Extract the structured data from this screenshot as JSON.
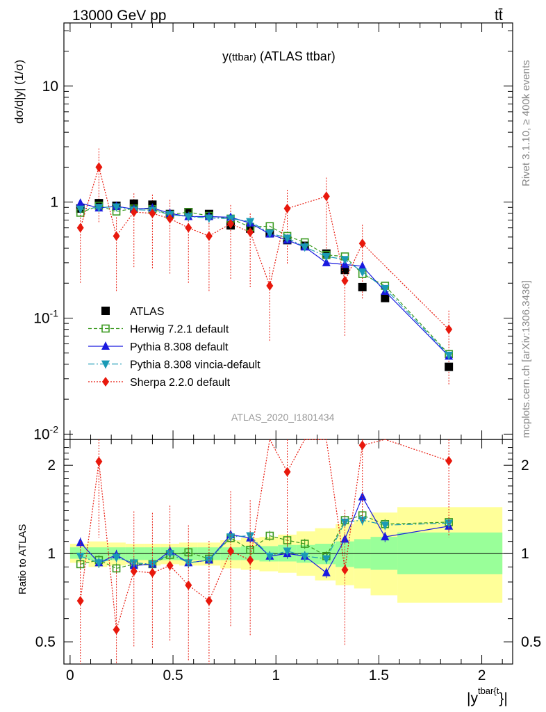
{
  "header": {
    "energy_label": "13000 GeV pp",
    "process_label": "tt̄",
    "plot_title_main": "y",
    "plot_title_sub": "(ttbar)",
    "plot_title_rest": " (ATLAS ttbar)",
    "analysis_id": "ATLAS_2020_I1801434"
  },
  "side_labels": {
    "rivet": "Rivet 3.1.10, ≥ 400k events",
    "mcplots": "mcplots.cern.ch [arXiv:1306.3436]"
  },
  "axes": {
    "ylabel_top": "dσ/d|y| (1/σ)",
    "ylabel_bottom": "Ratio to ATLAS",
    "xlabel": "|y^{tbar{t}}|",
    "xlabel_base": "|y",
    "xlabel_sup": "tbar{t",
    "xlabel_end": "}|"
  },
  "chart_data": [
    {
      "type": "line",
      "title": "y(ttbar) (ATLAS ttbar)",
      "xlabel": "|y^{tbar{t}}|",
      "ylabel": "1/σ dσ/d|y^{tbar{t}}|",
      "yscale": "log",
      "xlim": [
        -0.03,
        2.15
      ],
      "ylim": [
        0.009,
        35
      ],
      "x_ticks": [
        "0",
        "0.5",
        "1",
        "1.5",
        "2"
      ],
      "y_ticks": [
        "10^{-2}",
        "10^{-1}",
        "1",
        "10"
      ],
      "legend_position": "middle-left",
      "x": [
        0.05,
        0.14,
        0.225,
        0.31,
        0.4,
        0.485,
        0.575,
        0.675,
        0.78,
        0.875,
        0.97,
        1.055,
        1.14,
        1.245,
        1.335,
        1.42,
        1.53,
        1.84
      ],
      "series": [
        {
          "name": "ATLAS",
          "color": "#000000",
          "marker": "square",
          "values": [
            0.88,
            0.98,
            0.93,
            0.97,
            0.95,
            0.79,
            0.82,
            0.79,
            0.63,
            0.59,
            0.54,
            0.47,
            0.42,
            0.36,
            0.26,
            0.185,
            0.149,
            0.038
          ]
        },
        {
          "name": "Herwig 7.2.1 default",
          "color": "#3a9a1f",
          "marker": "open-square",
          "values": [
            0.81,
            0.93,
            0.83,
            0.88,
            0.87,
            0.78,
            0.82,
            0.76,
            0.72,
            0.61,
            0.62,
            0.51,
            0.45,
            0.35,
            0.34,
            0.24,
            0.19,
            0.049
          ]
        },
        {
          "name": "Pythia 8.308 default",
          "color": "#1a1adf",
          "marker": "triangle-up",
          "values": [
            0.98,
            0.89,
            0.92,
            0.87,
            0.89,
            0.8,
            0.75,
            0.75,
            0.74,
            0.66,
            0.53,
            0.47,
            0.41,
            0.3,
            0.29,
            0.28,
            0.17,
            0.047
          ]
        },
        {
          "name": "Pythia 8.308 vincia-default",
          "color": "#1a9ab5",
          "marker": "triangle-down",
          "values": [
            0.87,
            0.9,
            0.91,
            0.86,
            0.85,
            0.78,
            0.75,
            0.73,
            0.72,
            0.68,
            0.54,
            0.49,
            0.41,
            0.34,
            0.32,
            0.25,
            0.18,
            0.048
          ]
        },
        {
          "name": "Sherpa 2.2.0 default",
          "color": "#e8180c",
          "marker": "diamond",
          "values": [
            0.6,
            2.0,
            0.51,
            0.82,
            0.8,
            0.72,
            0.6,
            0.51,
            0.65,
            0.55,
            0.19,
            0.88,
            null,
            1.12,
            0.21,
            0.44,
            null,
            0.08
          ]
        }
      ]
    },
    {
      "type": "line",
      "ylabel": "Ratio to ATLAS",
      "xlabel": "|y^{tbar{t}}|",
      "yscale": "log",
      "xlim": [
        -0.03,
        2.15
      ],
      "ylim": [
        0.42,
        2.45
      ],
      "y_ticks": [
        "0.5",
        "1",
        "2"
      ],
      "x": [
        0.05,
        0.14,
        0.225,
        0.31,
        0.4,
        0.485,
        0.575,
        0.675,
        0.78,
        0.875,
        0.97,
        1.055,
        1.14,
        1.245,
        1.335,
        1.42,
        1.53,
        1.84
      ],
      "series": [
        {
          "name": "Herwig 7.2.1 default",
          "color": "#3a9a1f",
          "values": [
            0.92,
            0.95,
            0.89,
            0.92,
            0.92,
            0.99,
            1.01,
            0.96,
            1.13,
            1.03,
            1.15,
            1.11,
            1.08,
            0.98,
            1.3,
            1.35,
            1.26,
            1.28
          ]
        },
        {
          "name": "Pythia 8.308 default",
          "color": "#1a1adf",
          "values": [
            1.09,
            0.93,
            0.99,
            0.91,
            0.92,
            1.02,
            0.93,
            0.95,
            1.16,
            1.13,
            0.98,
            1.0,
            0.98,
            0.86,
            1.12,
            1.56,
            1.14,
            1.24
          ]
        },
        {
          "name": "Pythia 8.308 vincia-default",
          "color": "#1a9ab5",
          "values": [
            0.98,
            0.93,
            0.97,
            0.93,
            0.92,
            1.0,
            0.93,
            0.95,
            1.14,
            1.15,
            0.98,
            1.02,
            0.98,
            0.96,
            1.28,
            1.3,
            1.25,
            1.27
          ]
        },
        {
          "name": "Sherpa 2.2.0 default",
          "color": "#e8180c",
          "values": [
            0.69,
            2.06,
            0.55,
            0.87,
            0.86,
            0.91,
            0.78,
            0.69,
            1.02,
            0.95,
            null,
            1.9,
            null,
            null,
            0.88,
            2.34,
            null,
            2.07
          ]
        }
      ],
      "band_edges": [
        0.0,
        0.09,
        0.18,
        0.27,
        0.36,
        0.44,
        0.53,
        0.62,
        0.73,
        0.83,
        0.92,
        1.01,
        1.1,
        1.19,
        1.29,
        1.38,
        1.46,
        1.59,
        2.1
      ],
      "stat_band": [
        [
          0.96,
          1.05
        ],
        [
          0.95,
          1.05
        ],
        [
          0.95,
          1.05
        ],
        [
          0.95,
          1.05
        ],
        [
          0.95,
          1.05
        ],
        [
          0.95,
          1.05
        ],
        [
          0.95,
          1.05
        ],
        [
          0.95,
          1.05
        ],
        [
          0.95,
          1.05
        ],
        [
          0.95,
          1.06
        ],
        [
          0.94,
          1.06
        ],
        [
          0.94,
          1.07
        ],
        [
          0.93,
          1.07
        ],
        [
          0.92,
          1.08
        ],
        [
          0.9,
          1.1
        ],
        [
          0.89,
          1.12
        ],
        [
          0.88,
          1.14
        ],
        [
          0.85,
          1.18
        ]
      ],
      "syst_band": [
        [
          0.93,
          1.08
        ],
        [
          0.9,
          1.1
        ],
        [
          0.91,
          1.09
        ],
        [
          0.92,
          1.08
        ],
        [
          0.91,
          1.08
        ],
        [
          0.92,
          1.08
        ],
        [
          0.91,
          1.09
        ],
        [
          0.91,
          1.09
        ],
        [
          0.89,
          1.11
        ],
        [
          0.88,
          1.13
        ],
        [
          0.87,
          1.14
        ],
        [
          0.86,
          1.16
        ],
        [
          0.84,
          1.19
        ],
        [
          0.81,
          1.22
        ],
        [
          0.78,
          1.26
        ],
        [
          0.76,
          1.3
        ],
        [
          0.72,
          1.38
        ],
        [
          0.68,
          1.44
        ]
      ]
    }
  ]
}
